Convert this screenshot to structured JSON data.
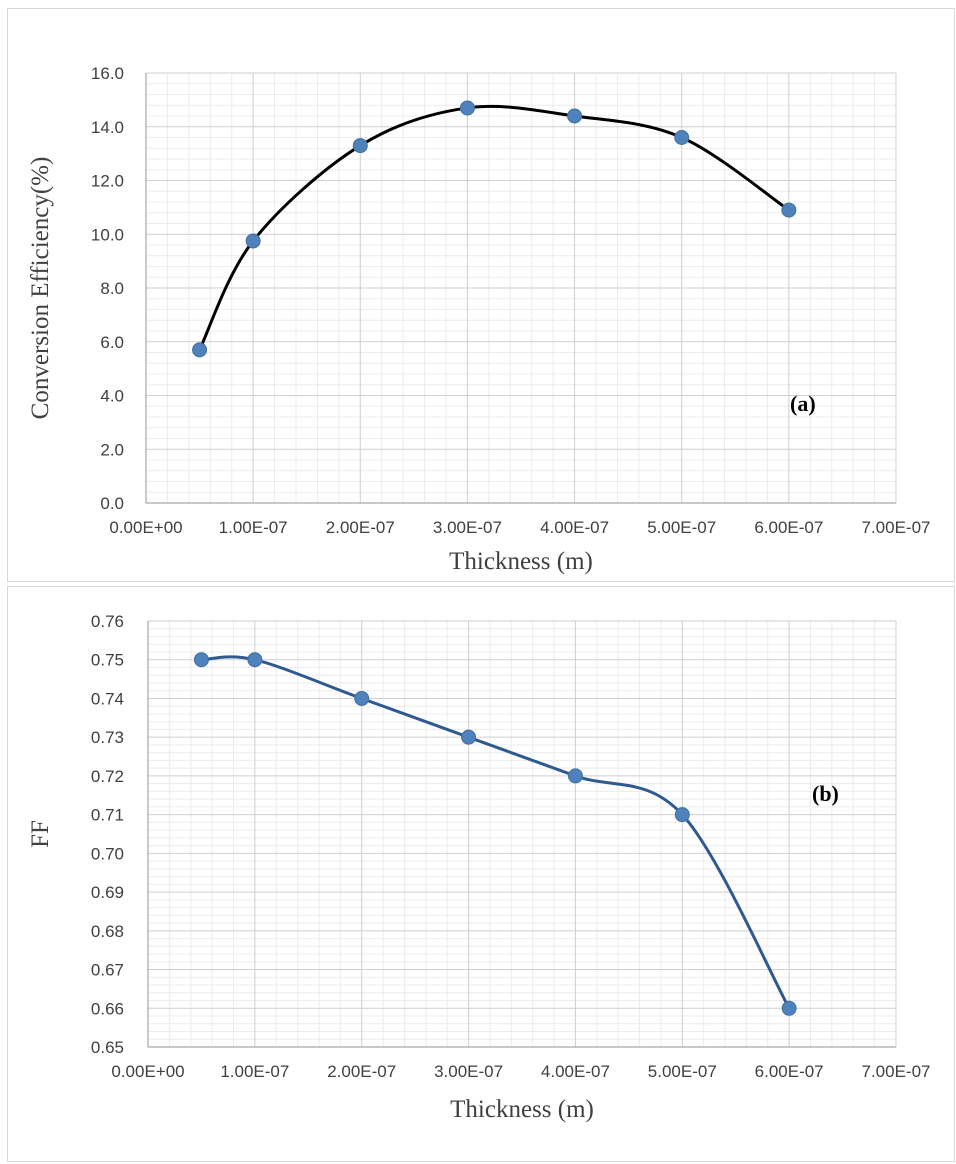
{
  "chart_data": [
    {
      "id": "a",
      "type": "line",
      "smooth": true,
      "annotation": "(a)",
      "xlabel": "Thickness (m)",
      "ylabel": "Conversion Efficiency(%)",
      "xlim": [
        0,
        7e-07
      ],
      "ylim": [
        0,
        16
      ],
      "xticks": [
        0,
        1e-07,
        2e-07,
        3e-07,
        4e-07,
        5e-07,
        6e-07,
        7e-07
      ],
      "xtick_labels": [
        "0.00E+00",
        "1.00E-07",
        "2.00E-07",
        "3.00E-07",
        "4.00E-07",
        "5.00E-07",
        "6.00E-07",
        "7.00E-07"
      ],
      "yticks": [
        0,
        2,
        4,
        6,
        8,
        10,
        12,
        14,
        16
      ],
      "ytick_labels": [
        "0.0",
        "2.0",
        "4.0",
        "6.0",
        "8.0",
        "10.0",
        "12.0",
        "14.0",
        "16.0"
      ],
      "grid": "major and minor",
      "line_color": "#000000",
      "marker_color": "#4f81bd",
      "series": [
        {
          "x": [
            5e-08,
            1e-07,
            2e-07,
            3e-07,
            4e-07,
            5e-07,
            6e-07
          ],
          "values": [
            5.7,
            9.75,
            13.3,
            14.7,
            14.4,
            13.6,
            10.9
          ]
        }
      ]
    },
    {
      "id": "b",
      "type": "line",
      "smooth": true,
      "annotation": "(b)",
      "xlabel": "Thickness (m)",
      "ylabel": "FF",
      "xlim": [
        0,
        7e-07
      ],
      "ylim": [
        0.65,
        0.76
      ],
      "xticks": [
        0,
        1e-07,
        2e-07,
        3e-07,
        4e-07,
        5e-07,
        6e-07,
        7e-07
      ],
      "xtick_labels": [
        "0.00E+00",
        "1.00E-07",
        "2.00E-07",
        "3.00E-07",
        "4.00E-07",
        "5.00E-07",
        "6.00E-07",
        "7.00E-07"
      ],
      "yticks": [
        0.65,
        0.66,
        0.67,
        0.68,
        0.69,
        0.7,
        0.71,
        0.72,
        0.73,
        0.74,
        0.75,
        0.76
      ],
      "ytick_labels": [
        "0.65",
        "0.66",
        "0.67",
        "0.68",
        "0.69",
        "0.70",
        "0.71",
        "0.72",
        "0.73",
        "0.74",
        "0.75",
        "0.76"
      ],
      "grid": "major and minor",
      "line_color": "#2e5a8f",
      "marker_color": "#4f81bd",
      "series": [
        {
          "x": [
            5e-08,
            1e-07,
            2e-07,
            3e-07,
            4e-07,
            5e-07,
            6e-07
          ],
          "values": [
            0.75,
            0.75,
            0.74,
            0.73,
            0.72,
            0.71,
            0.66
          ]
        }
      ]
    }
  ]
}
